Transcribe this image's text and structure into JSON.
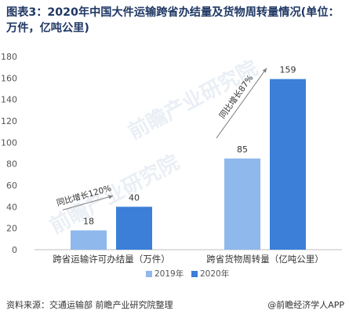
{
  "title": "图表3：2020年中国大件运输跨省办结量及货物周转量情况(单位：万件，亿吨公里)",
  "chart_data": {
    "type": "bar",
    "categories": [
      "跨省运输许可办结量（万件）",
      "跨省货物周转量（亿吨公里）"
    ],
    "series": [
      {
        "name": "2019年",
        "values": [
          18,
          85
        ],
        "color": "#8fb8ec"
      },
      {
        "name": "2020年",
        "values": [
          40,
          159
        ],
        "color": "#3b7fd9"
      }
    ],
    "ylim": [
      0,
      180
    ],
    "yticks": [
      0,
      20,
      40,
      60,
      80,
      100,
      120,
      140,
      160,
      180
    ],
    "data_labels": true,
    "grid": false,
    "legend": "bottom",
    "annotations": [
      {
        "text": "同比增长120%",
        "category": 0
      },
      {
        "text": "同比增长87%",
        "category": 1
      }
    ]
  },
  "watermark": "前瞻产业研究院",
  "footer": {
    "source": "资料来源：交通运输部 前瞻产业研究院整理",
    "brand": "@前瞻经济学人APP"
  }
}
